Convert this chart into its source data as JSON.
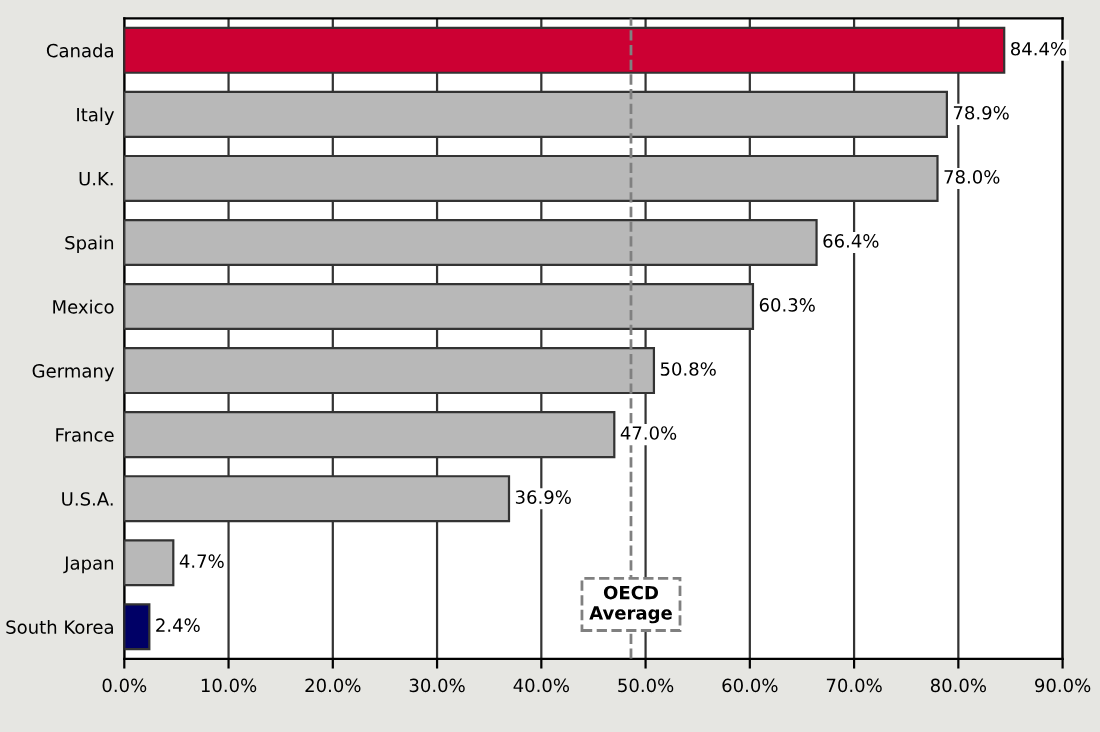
{
  "chart_data": {
    "type": "bar",
    "orientation": "horizontal",
    "categories": [
      "Canada",
      "Italy",
      "U.K.",
      "Spain",
      "Mexico",
      "Germany",
      "France",
      "U.S.A.",
      "Japan",
      "South Korea"
    ],
    "values": [
      84.4,
      78.9,
      78.0,
      66.4,
      60.3,
      50.8,
      47.0,
      36.9,
      4.7,
      2.4
    ],
    "colors": [
      "#cc0033",
      "#b8b8b8",
      "#b8b8b8",
      "#b8b8b8",
      "#b8b8b8",
      "#b8b8b8",
      "#b8b8b8",
      "#b8b8b8",
      "#b8b8b8",
      "#000066"
    ],
    "value_labels": [
      "84.4%",
      "78.9%",
      "78.0%",
      "66.4%",
      "60.3%",
      "50.8%",
      "47.0%",
      "36.9%",
      "4.7%",
      "2.4%"
    ],
    "xlim": [
      0,
      90
    ],
    "xticks": [
      {
        "value": 0,
        "label": "0.0%"
      },
      {
        "value": 10,
        "label": "10.0%"
      },
      {
        "value": 20,
        "label": "20.0%"
      },
      {
        "value": 30,
        "label": "30.0%"
      },
      {
        "value": 40,
        "label": "40.0%"
      },
      {
        "value": 50,
        "label": "50.0%"
      },
      {
        "value": 60,
        "label": "60.0%"
      },
      {
        "value": 70,
        "label": "70.0%"
      },
      {
        "value": 80,
        "label": "80.0%"
      },
      {
        "value": 90,
        "label": "90.0%"
      }
    ],
    "grid": "x",
    "legend": false,
    "ref_lines": [
      {
        "axis": "x",
        "value": 48.6,
        "label": "OECD\nAverage",
        "line_style": "dashed",
        "color": "#808080"
      }
    ]
  }
}
